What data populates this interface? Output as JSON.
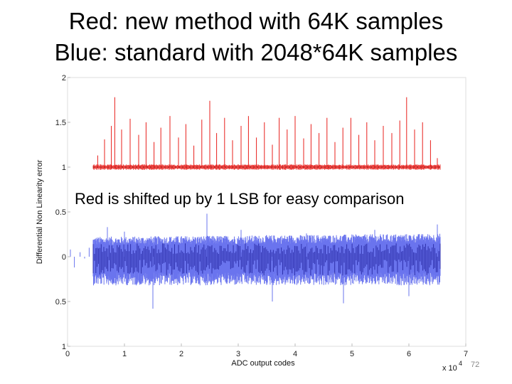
{
  "slide": {
    "title_line1": "Red: new method with 64K samples",
    "title_line2": "Blue: standard with 2048*64K samples",
    "annotation": "Red is shifted up by 1 LSB for easy comparison",
    "page_number": "72"
  },
  "chart_data": {
    "type": "line",
    "xlabel": "ADC output codes",
    "ylabel": "Differential Non Linearity error",
    "x_multiplier_label": "x 10",
    "x_multiplier_exponent": "4",
    "xlim": [
      0,
      7
    ],
    "ylim": [
      -1,
      2
    ],
    "x_ticks": [
      0,
      1,
      2,
      3,
      4,
      5,
      6,
      7
    ],
    "x_tick_labels": [
      "0",
      "1",
      "2",
      "3",
      "4",
      "5",
      "6",
      "7"
    ],
    "y_ticks": [
      2,
      1.5,
      1,
      0.5,
      0,
      -0.5,
      -1
    ],
    "y_tick_labels": [
      "2",
      "1.5",
      "1",
      "0.5",
      "0",
      "0.5",
      "1"
    ],
    "grid": false,
    "series": [
      {
        "name": "Red: new method with 64K samples",
        "color": "#e8201c",
        "x_start": 0.45,
        "x_end": 6.55,
        "baseline": 1.0,
        "noise_amplitude": 0.03,
        "spikes": [
          {
            "x": 0.53,
            "y": 1.13
          },
          {
            "x": 0.65,
            "y": 1.31
          },
          {
            "x": 0.77,
            "y": 1.46
          },
          {
            "x": 0.83,
            "y": 1.78
          },
          {
            "x": 0.95,
            "y": 1.42
          },
          {
            "x": 1.1,
            "y": 1.54
          },
          {
            "x": 1.25,
            "y": 1.36
          },
          {
            "x": 1.38,
            "y": 1.5
          },
          {
            "x": 1.52,
            "y": 1.28
          },
          {
            "x": 1.64,
            "y": 1.44
          },
          {
            "x": 1.8,
            "y": 1.57
          },
          {
            "x": 1.95,
            "y": 1.33
          },
          {
            "x": 2.08,
            "y": 1.48
          },
          {
            "x": 2.22,
            "y": 1.24
          },
          {
            "x": 2.36,
            "y": 1.53
          },
          {
            "x": 2.5,
            "y": 1.74
          },
          {
            "x": 2.62,
            "y": 1.38
          },
          {
            "x": 2.76,
            "y": 1.55
          },
          {
            "x": 2.9,
            "y": 1.3
          },
          {
            "x": 3.05,
            "y": 1.46
          },
          {
            "x": 3.18,
            "y": 1.57
          },
          {
            "x": 3.32,
            "y": 1.33
          },
          {
            "x": 3.46,
            "y": 1.5
          },
          {
            "x": 3.6,
            "y": 1.25
          },
          {
            "x": 3.72,
            "y": 1.55
          },
          {
            "x": 3.86,
            "y": 1.42
          },
          {
            "x": 4.0,
            "y": 1.57
          },
          {
            "x": 4.15,
            "y": 1.32
          },
          {
            "x": 4.28,
            "y": 1.48
          },
          {
            "x": 4.42,
            "y": 1.38
          },
          {
            "x": 4.56,
            "y": 1.55
          },
          {
            "x": 4.7,
            "y": 1.28
          },
          {
            "x": 4.84,
            "y": 1.44
          },
          {
            "x": 4.98,
            "y": 1.55
          },
          {
            "x": 5.12,
            "y": 1.36
          },
          {
            "x": 5.26,
            "y": 1.5
          },
          {
            "x": 5.4,
            "y": 1.3
          },
          {
            "x": 5.55,
            "y": 1.46
          },
          {
            "x": 5.7,
            "y": 1.38
          },
          {
            "x": 5.84,
            "y": 1.52
          },
          {
            "x": 5.96,
            "y": 1.78
          },
          {
            "x": 6.1,
            "y": 1.42
          },
          {
            "x": 6.24,
            "y": 1.5
          },
          {
            "x": 6.38,
            "y": 1.3
          },
          {
            "x": 6.5,
            "y": 1.1
          }
        ]
      },
      {
        "name": "Blue: standard with 2048*64K samples",
        "color": "#6a74ee",
        "x_start": 0.45,
        "x_end": 6.55,
        "baseline": 0.0,
        "band_low": -0.32,
        "band_high": 0.22,
        "outliers": [
          {
            "x": 0.05,
            "y": 0.08
          },
          {
            "x": 0.12,
            "y": -0.12
          },
          {
            "x": 0.22,
            "y": 0.05
          },
          {
            "x": 0.3,
            "y": -0.02
          },
          {
            "x": 0.38,
            "y": 0.1
          },
          {
            "x": 0.7,
            "y": 0.33
          },
          {
            "x": 1.0,
            "y": 0.28
          },
          {
            "x": 1.5,
            "y": -0.58
          },
          {
            "x": 2.45,
            "y": 0.48
          },
          {
            "x": 3.05,
            "y": 0.3
          },
          {
            "x": 3.6,
            "y": -0.5
          },
          {
            "x": 4.2,
            "y": 0.26
          },
          {
            "x": 4.85,
            "y": -0.52
          },
          {
            "x": 5.4,
            "y": 0.3
          },
          {
            "x": 6.0,
            "y": -0.44
          },
          {
            "x": 6.5,
            "y": 0.36
          }
        ]
      }
    ]
  }
}
